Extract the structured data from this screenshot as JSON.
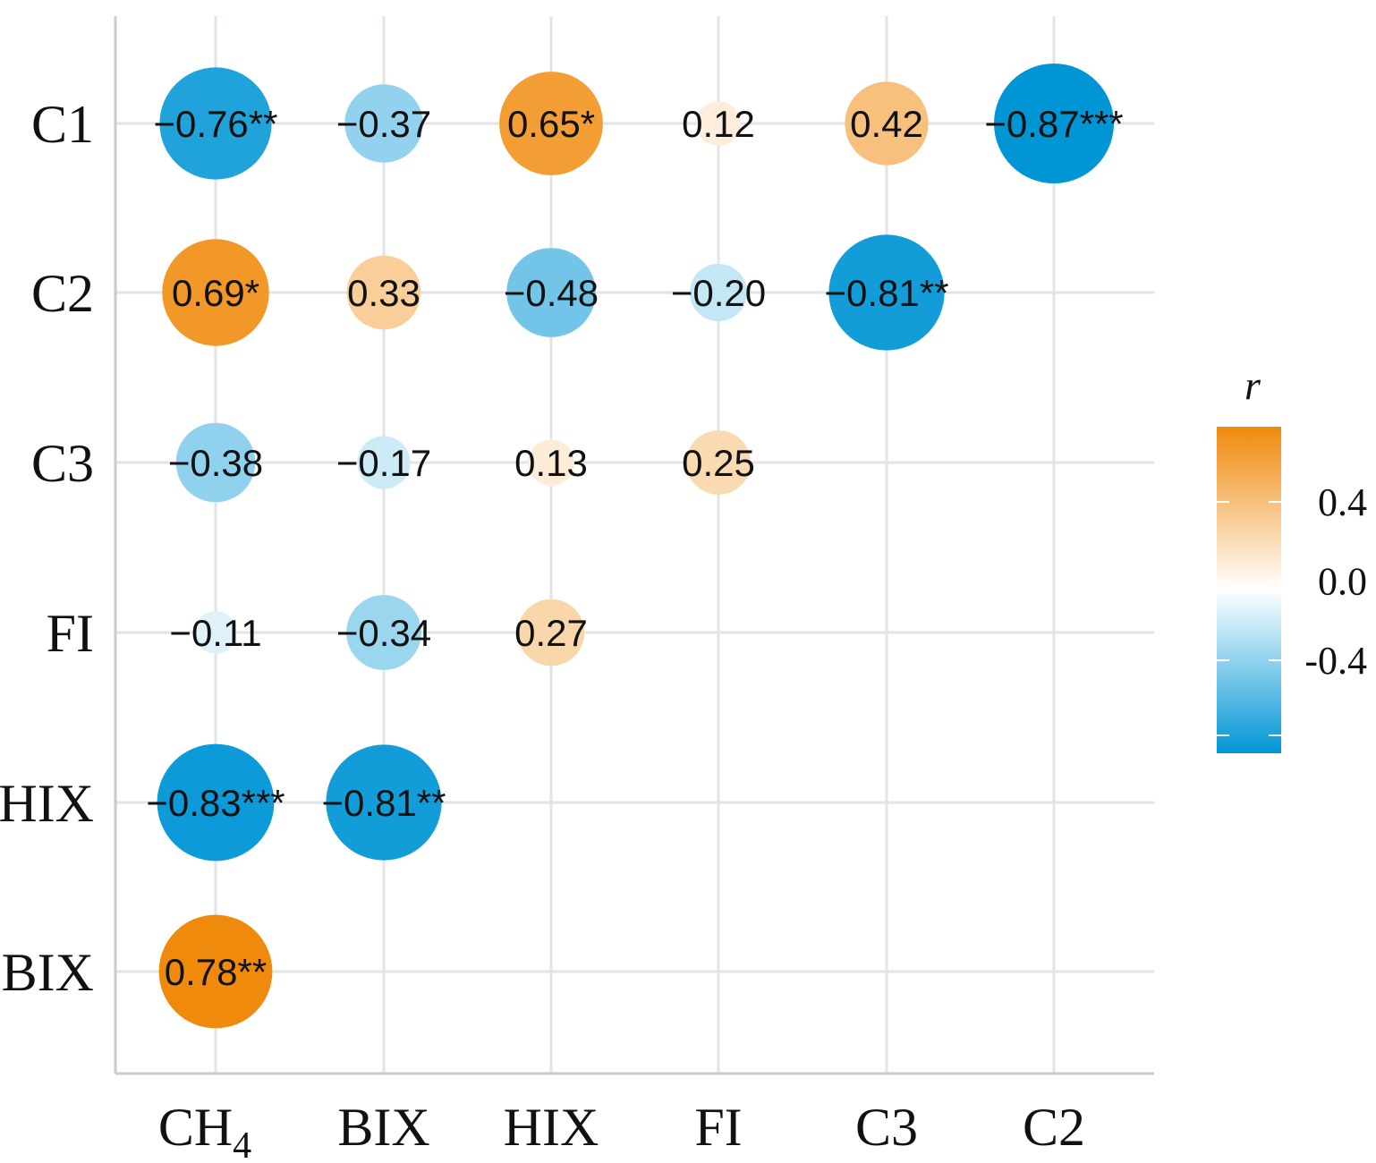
{
  "chart_data": {
    "type": "heatmap",
    "style": "correlation bubble matrix (lower triangle)",
    "x_categories": [
      "CH4",
      "BIX",
      "HIX",
      "FI",
      "C3",
      "C2"
    ],
    "y_categories": [
      "C1",
      "C2",
      "C3",
      "FI",
      "HIX",
      "BIX"
    ],
    "cells": [
      {
        "row": "C1",
        "col": "CH4",
        "r": -0.76,
        "label": "−0.76**"
      },
      {
        "row": "C1",
        "col": "BIX",
        "r": -0.37,
        "label": "−0.37"
      },
      {
        "row": "C1",
        "col": "HIX",
        "r": 0.65,
        "label": "0.65*"
      },
      {
        "row": "C1",
        "col": "FI",
        "r": 0.12,
        "label": "0.12"
      },
      {
        "row": "C1",
        "col": "C3",
        "r": 0.42,
        "label": "0.42"
      },
      {
        "row": "C1",
        "col": "C2",
        "r": -0.87,
        "label": "−0.87***"
      },
      {
        "row": "C2",
        "col": "CH4",
        "r": 0.69,
        "label": "0.69*"
      },
      {
        "row": "C2",
        "col": "BIX",
        "r": 0.33,
        "label": "0.33"
      },
      {
        "row": "C2",
        "col": "HIX",
        "r": -0.48,
        "label": "−0.48"
      },
      {
        "row": "C2",
        "col": "FI",
        "r": -0.2,
        "label": "−0.20"
      },
      {
        "row": "C2",
        "col": "C3",
        "r": -0.81,
        "label": "−0.81**"
      },
      {
        "row": "C3",
        "col": "CH4",
        "r": -0.38,
        "label": "−0.38"
      },
      {
        "row": "C3",
        "col": "BIX",
        "r": -0.17,
        "label": "−0.17"
      },
      {
        "row": "C3",
        "col": "HIX",
        "r": 0.13,
        "label": "0.13"
      },
      {
        "row": "C3",
        "col": "FI",
        "r": 0.25,
        "label": "0.25"
      },
      {
        "row": "FI",
        "col": "CH4",
        "r": -0.11,
        "label": "−0.11"
      },
      {
        "row": "FI",
        "col": "BIX",
        "r": -0.34,
        "label": "−0.34"
      },
      {
        "row": "FI",
        "col": "HIX",
        "r": 0.27,
        "label": "0.27"
      },
      {
        "row": "HIX",
        "col": "CH4",
        "r": -0.83,
        "label": "−0.83***"
      },
      {
        "row": "HIX",
        "col": "BIX",
        "r": -0.81,
        "label": "−0.81**"
      },
      {
        "row": "BIX",
        "col": "CH4",
        "r": 0.78,
        "label": "0.78**"
      }
    ],
    "legend": {
      "title": "r",
      "ticks": [
        0.4,
        0.0,
        -0.4
      ],
      "tick_labels": [
        "0.4",
        "0.0",
        "-0.4"
      ],
      "range": [
        -0.87,
        0.78
      ],
      "position": "right"
    },
    "colors": {
      "positive": "#F08A0C",
      "zero": "#FFFFFF",
      "negative": "#0096D6",
      "grid": "#E2E4E5",
      "axis": "#C8CACB"
    },
    "grid": true
  }
}
